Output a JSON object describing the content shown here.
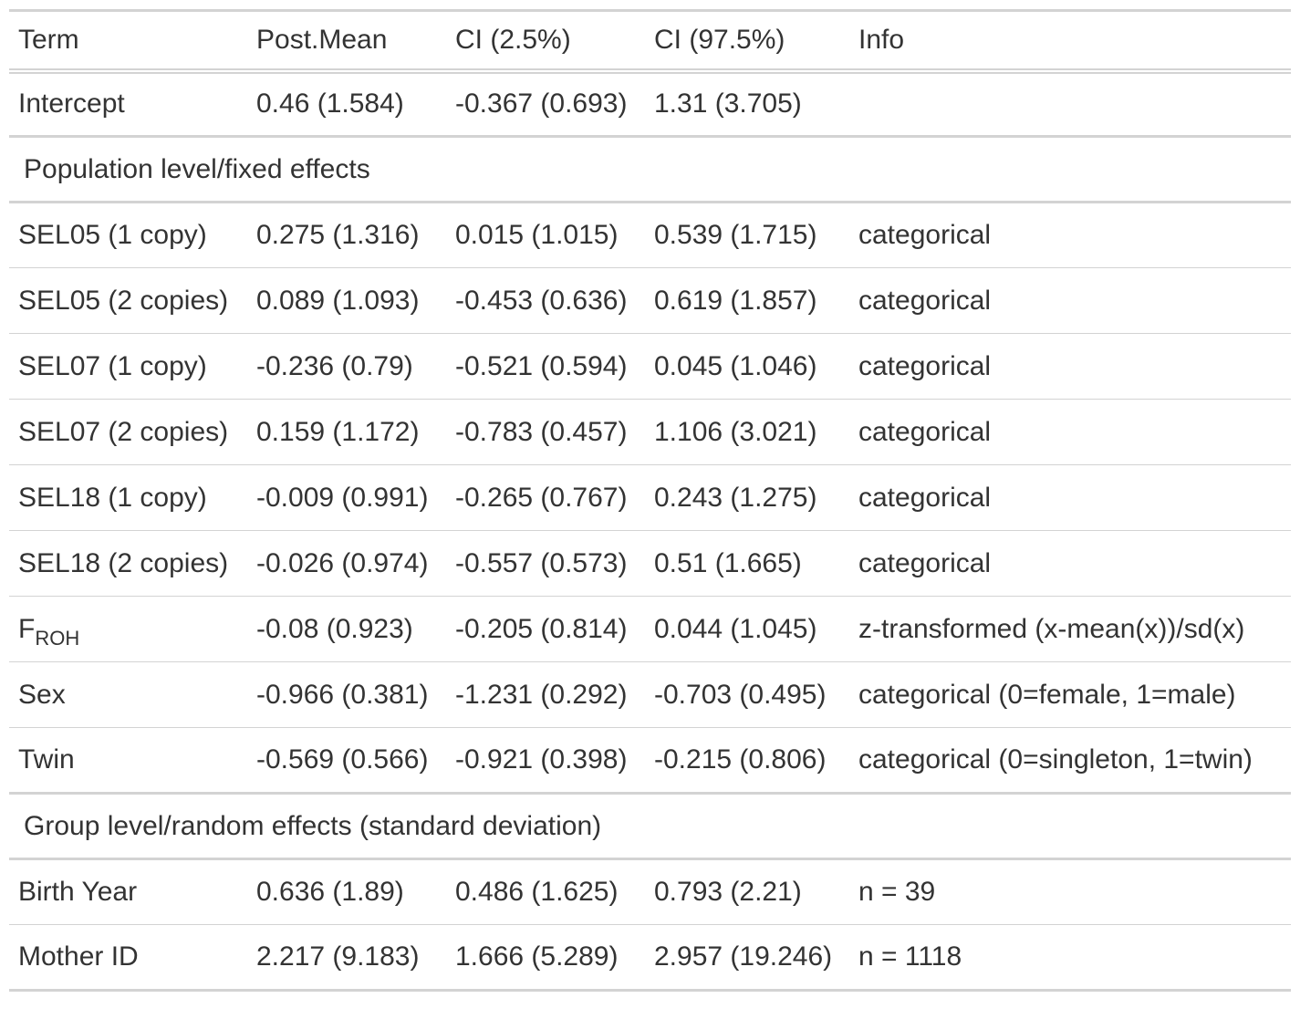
{
  "header": [
    "Term",
    "Post.Mean",
    "CI (2.5%)",
    "CI (97.5%)",
    "Info"
  ],
  "intercept": {
    "term": "Intercept",
    "mean": "0.46 (1.584)",
    "lo": "-0.367 (0.693)",
    "hi": "1.31 (3.705)",
    "info": ""
  },
  "group_fixed": "Population level/fixed effects",
  "fixed_rows": [
    {
      "term": "SEL05 (1 copy)",
      "mean": "0.275 (1.316)",
      "lo": "0.015 (1.015)",
      "hi": "0.539 (1.715)",
      "info": "categorical"
    },
    {
      "term": "SEL05 (2 copies)",
      "mean": "0.089 (1.093)",
      "lo": "-0.453 (0.636)",
      "hi": "0.619 (1.857)",
      "info": "categorical"
    },
    {
      "term": "SEL07 (1 copy)",
      "mean": "-0.236 (0.79)",
      "lo": "-0.521 (0.594)",
      "hi": "0.045 (1.046)",
      "info": "categorical"
    },
    {
      "term": "SEL07 (2 copies)",
      "mean": "0.159 (1.172)",
      "lo": "-0.783 (0.457)",
      "hi": "1.106 (3.021)",
      "info": "categorical"
    },
    {
      "term": "SEL18 (1 copy)",
      "mean": "-0.009 (0.991)",
      "lo": "-0.265 (0.767)",
      "hi": "0.243 (1.275)",
      "info": "categorical"
    },
    {
      "term": "SEL18 (2 copies)",
      "mean": "-0.026 (0.974)",
      "lo": "-0.557 (0.573)",
      "hi": "0.51 (1.665)",
      "info": "categorical"
    }
  ],
  "froh": {
    "term_main": "F",
    "term_sub": "ROH",
    "mean": "-0.08 (0.923)",
    "lo": "-0.205 (0.814)",
    "hi": "0.044 (1.045)",
    "info": "z-transformed (x-mean(x))/sd(x)"
  },
  "fixed_rows2": [
    {
      "term": "Sex",
      "mean": "-0.966 (0.381)",
      "lo": "-1.231 (0.292)",
      "hi": "-0.703 (0.495)",
      "info": "categorical (0=female, 1=male)"
    },
    {
      "term": "Twin",
      "mean": "-0.569 (0.566)",
      "lo": "-0.921 (0.398)",
      "hi": "-0.215 (0.806)",
      "info": "categorical (0=singleton, 1=twin)"
    }
  ],
  "group_random": "Group level/random effects (standard deviation)",
  "random_rows": [
    {
      "term": "Birth Year",
      "mean": "0.636 (1.89)",
      "lo": "0.486 (1.625)",
      "hi": "0.793 (2.21)",
      "info": "n = 39"
    },
    {
      "term": "Mother ID",
      "mean": "2.217 (9.183)",
      "lo": "1.666 (5.289)",
      "hi": "2.957 (19.246)",
      "info": "n = 1118"
    }
  ]
}
